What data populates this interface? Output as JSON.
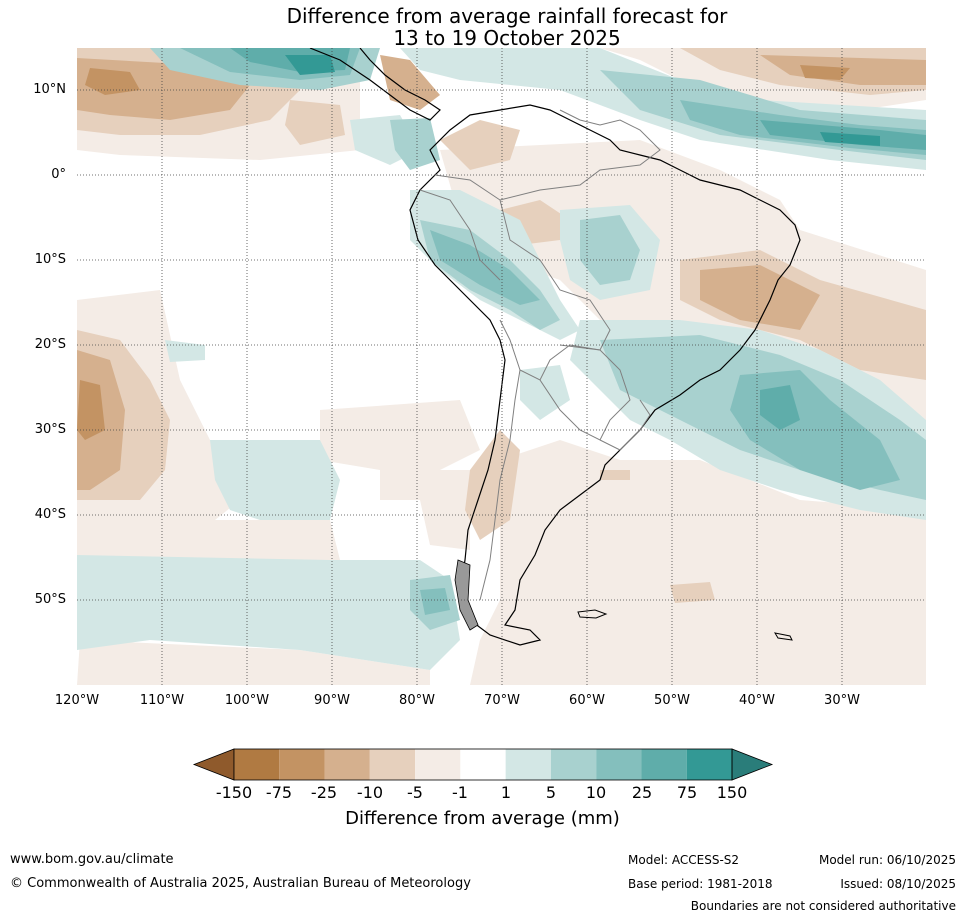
{
  "title": {
    "line1": "Difference from average rainfall forecast for",
    "line2": "13 to 19 October 2025"
  },
  "map": {
    "region": "South America",
    "lat_labels": [
      "10°N",
      "0°",
      "10°S",
      "20°S",
      "30°S",
      "40°S",
      "50°S"
    ],
    "lon_labels": [
      "120°W",
      "110°W",
      "100°W",
      "90°W",
      "80°W",
      "70°W",
      "60°W",
      "50°W",
      "40°W",
      "30°W"
    ]
  },
  "colorbar": {
    "label": "Difference from average (mm)",
    "ticks": [
      "-150",
      "-75",
      "-25",
      "-10",
      "-5",
      "-1",
      "1",
      "5",
      "10",
      "25",
      "75",
      "150"
    ],
    "colors": [
      "#8f5a2c",
      "#b07a42",
      "#c39363",
      "#d5b08e",
      "#e6d0bd",
      "#f4ece6",
      "#ffffff",
      "#d3e7e5",
      "#a8d1cf",
      "#84bfbd",
      "#5fadaa",
      "#339995",
      "#2a7d7a"
    ]
  },
  "footer": {
    "website": "www.bom.gov.au/climate",
    "copyright": "© Commonwealth of Australia 2025, Australian Bureau of Meteorology",
    "model": "Model: ACCESS-S2",
    "base_period": "Base period: 1981-2018",
    "model_run": "Model run: 06/10/2025",
    "issued": "Issued: 08/10/2025",
    "disclaimer": "Boundaries are not considered authoritative"
  }
}
